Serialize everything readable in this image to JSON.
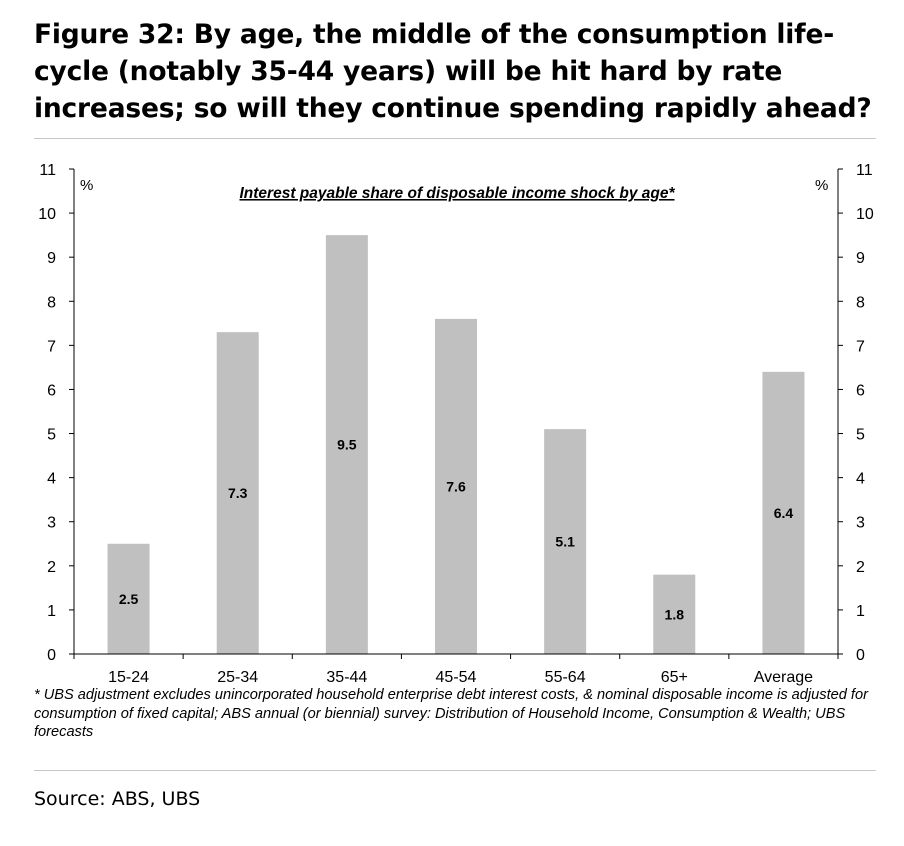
{
  "title": "Figure 32: By age, the middle of the consumption life-cycle (notably 35-44 years) will be hit hard by rate increases; so will they continue spending rapidly ahead?",
  "footnote": "* UBS adjustment excludes unincorporated household enterprise debt interest costs, & nominal disposable income is adjusted for consumption of fixed capital; ABS annual (or biennial) survey: Distribution of Household Income, Consumption & Wealth; UBS forecasts",
  "source": "Source: ABS, UBS",
  "chart_data": {
    "type": "bar",
    "title": "Interest payable share of disposable income shock by age*",
    "categories": [
      "15-24",
      "25-34",
      "35-44",
      "45-54",
      "55-64",
      "65+",
      "Average"
    ],
    "values": [
      2.5,
      7.3,
      9.5,
      7.6,
      5.1,
      1.8,
      6.4
    ],
    "data_labels": [
      "2.5",
      "7.3",
      "9.5",
      "7.6",
      "5.1",
      "1.8",
      "6.4"
    ],
    "ylabel_left": "%",
    "ylabel_right": "%",
    "ylim": [
      0,
      11
    ],
    "yticks": [
      0,
      1,
      2,
      3,
      4,
      5,
      6,
      7,
      8,
      9,
      10,
      11
    ],
    "grid": false,
    "legend": "none",
    "bar_color": "#c0c0c0"
  }
}
